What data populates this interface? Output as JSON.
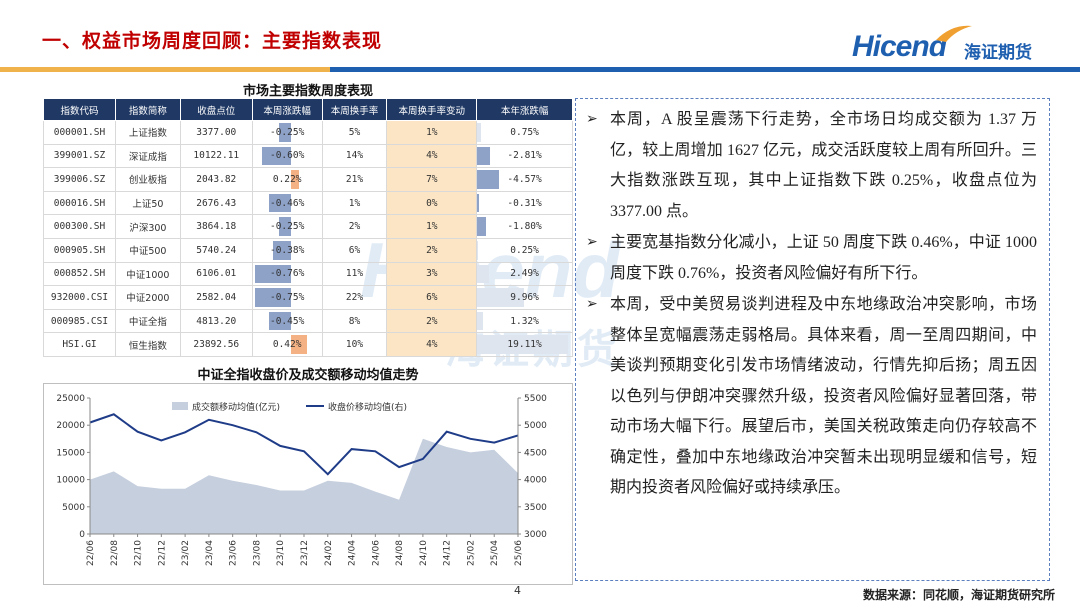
{
  "header": {
    "title": "一、权益市场周度回顾：主要指数表现",
    "logo_en": "Hicend",
    "logo_cn": "海证期货"
  },
  "colors": {
    "title_red": "#c00000",
    "brand_blue": "#1f5fb0",
    "table_header": "#1f3864",
    "bar_blue": "#8ea2c8",
    "bar_orange": "#f4b183",
    "turnover_change": "#fbe5c4",
    "area_fill": "#c6cfde",
    "line": "#1f3c88"
  },
  "table": {
    "title": "市场主要指数周度表现",
    "headers": [
      "指数代码",
      "指数简称",
      "收盘点位",
      "本周涨跌幅",
      "本周换手率",
      "本周换手率变动",
      "本年涨跌幅"
    ],
    "rows": [
      {
        "code": "000001.SH",
        "name": "上证指数",
        "close": "3377.00",
        "week_chg": "-0.25%",
        "turnover": "5%",
        "turnover_chg": "1%",
        "ytd": "0.75%",
        "week_val": -0.25,
        "ytd_val": 0.75
      },
      {
        "code": "399001.SZ",
        "name": "深证成指",
        "close": "10122.11",
        "week_chg": "-0.60%",
        "turnover": "14%",
        "turnover_chg": "4%",
        "ytd": "-2.81%",
        "week_val": -0.6,
        "ytd_val": -2.81
      },
      {
        "code": "399006.SZ",
        "name": "创业板指",
        "close": "2043.82",
        "week_chg": "0.22%",
        "turnover": "21%",
        "turnover_chg": "7%",
        "ytd": "-4.57%",
        "week_val": 0.22,
        "ytd_val": -4.57
      },
      {
        "code": "000016.SH",
        "name": "上证50",
        "close": "2676.43",
        "week_chg": "-0.46%",
        "turnover": "1%",
        "turnover_chg": "0%",
        "ytd": "-0.31%",
        "week_val": -0.46,
        "ytd_val": -0.31
      },
      {
        "code": "000300.SH",
        "name": "沪深300",
        "close": "3864.18",
        "week_chg": "-0.25%",
        "turnover": "2%",
        "turnover_chg": "1%",
        "ytd": "-1.80%",
        "week_val": -0.25,
        "ytd_val": -1.8
      },
      {
        "code": "000905.SH",
        "name": "中证500",
        "close": "5740.24",
        "week_chg": "-0.38%",
        "turnover": "6%",
        "turnover_chg": "2%",
        "ytd": "0.25%",
        "week_val": -0.38,
        "ytd_val": 0.25
      },
      {
        "code": "000852.SH",
        "name": "中证1000",
        "close": "6106.01",
        "week_chg": "-0.76%",
        "turnover": "11%",
        "turnover_chg": "3%",
        "ytd": "2.49%",
        "week_val": -0.76,
        "ytd_val": 2.49
      },
      {
        "code": "932000.CSI",
        "name": "中证2000",
        "close": "2582.04",
        "week_chg": "-0.75%",
        "turnover": "22%",
        "turnover_chg": "6%",
        "ytd": "9.96%",
        "week_val": -0.75,
        "ytd_val": 9.96
      },
      {
        "code": "000985.CSI",
        "name": "中证全指",
        "close": "4813.20",
        "week_chg": "-0.45%",
        "turnover": "8%",
        "turnover_chg": "2%",
        "ytd": "1.32%",
        "week_val": -0.45,
        "ytd_val": 1.32
      },
      {
        "code": "HSI.GI",
        "name": "恒生指数",
        "close": "23892.56",
        "week_chg": "0.42%",
        "turnover": "10%",
        "turnover_chg": "4%",
        "ytd": "19.11%",
        "week_val": 0.42,
        "ytd_val": 19.11
      }
    ]
  },
  "chart": {
    "title": "中证全指收盘价及成交额移动均值走势"
  },
  "chart_data": {
    "type": "area",
    "title": "中证全指收盘价及成交额移动均值走势",
    "categories": [
      "22/06",
      "22/08",
      "22/10",
      "22/12",
      "23/02",
      "23/04",
      "23/06",
      "23/08",
      "23/10",
      "23/12",
      "24/02",
      "24/04",
      "24/06",
      "24/08",
      "24/10",
      "24/12",
      "25/02",
      "25/04",
      "25/06"
    ],
    "left_ylim": [
      0,
      25000
    ],
    "left_ticks": [
      0,
      5000,
      10000,
      15000,
      20000,
      25000
    ],
    "right_ylim": [
      3000,
      5500
    ],
    "right_ticks": [
      3000,
      3500,
      4000,
      4500,
      5000,
      5500
    ],
    "legend_position": "top",
    "grid": false,
    "series": [
      {
        "name": "成交额移动均值(亿元)",
        "type": "area",
        "axis": "left",
        "values": [
          10000,
          11500,
          8800,
          8300,
          8300,
          10800,
          9800,
          9000,
          8000,
          8000,
          9800,
          9400,
          7800,
          6300,
          17500,
          16000,
          15000,
          15500,
          11200
        ]
      },
      {
        "name": "收盘价移动均值(右)",
        "type": "line",
        "axis": "right",
        "values": [
          5050,
          5200,
          4880,
          4720,
          4870,
          5100,
          5000,
          4870,
          4620,
          4520,
          4100,
          4560,
          4520,
          4230,
          4380,
          4880,
          4750,
          4680,
          4813
        ]
      }
    ]
  },
  "text_box": {
    "paragraphs": [
      "本周，A 股呈震荡下行走势，全市场日均成交额为 1.37 万亿，较上周增加 1627 亿元，成交活跃度较上周有所回升。三大指数涨跌互现，其中上证指数下跌 0.25%，收盘点位为 3377.00 点。",
      "主要宽基指数分化减小，上证 50 周度下跌 0.46%，中证 1000 周度下跌 0.76%，投资者风险偏好有所下行。",
      "本周，受中美贸易谈判进程及中东地缘政治冲突影响，市场整体呈宽幅震荡走弱格局。具体来看，周一至周四期间，中美谈判预期变化引发市场情绪波动，行情先抑后扬；周五因以色列与伊朗冲突骤然升级，投资者风险偏好显著回落，带动市场大幅下行。展望后市，美国关税政策走向仍存较高不确定性，叠加中东地缘政治冲突暂未出现明显缓和信号，短期内投资者风险偏好或持续承压。"
    ],
    "bullet": "➢"
  },
  "footer": {
    "page_number": "4",
    "source": "数据来源：同花顺，海证期货研究所"
  }
}
